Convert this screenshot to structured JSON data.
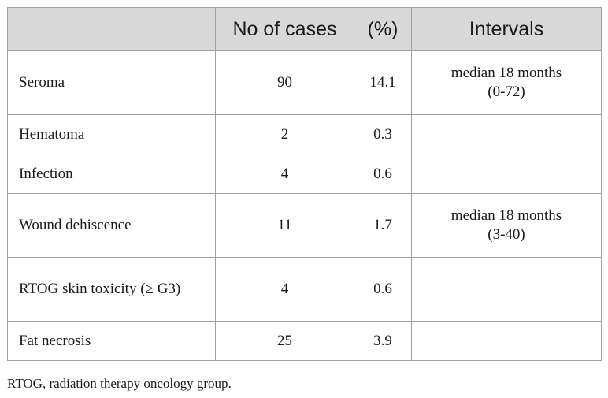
{
  "table": {
    "headers": [
      "",
      "No of cases",
      "(%)",
      "Intervals"
    ],
    "rows": [
      {
        "label": "Seroma",
        "cases": "90",
        "percent": "14.1",
        "interval_line1": "median 18 months",
        "interval_line2": "(0-72)"
      },
      {
        "label": "Hematoma",
        "cases": "2",
        "percent": "0.3",
        "interval_line1": "",
        "interval_line2": ""
      },
      {
        "label": "Infection",
        "cases": "4",
        "percent": "0.6",
        "interval_line1": "",
        "interval_line2": ""
      },
      {
        "label": "Wound dehiscence",
        "cases": "11",
        "percent": "1.7",
        "interval_line1": "median 18 months",
        "interval_line2": "(3-40)"
      },
      {
        "label": "RTOG skin toxicity (≥ G3)",
        "cases": "4",
        "percent": "0.6",
        "interval_line1": "",
        "interval_line2": ""
      },
      {
        "label": "Fat necrosis",
        "cases": "25",
        "percent": "3.9",
        "interval_line1": "",
        "interval_line2": ""
      }
    ]
  },
  "footnote": "RTOG, radiation therapy oncology group."
}
